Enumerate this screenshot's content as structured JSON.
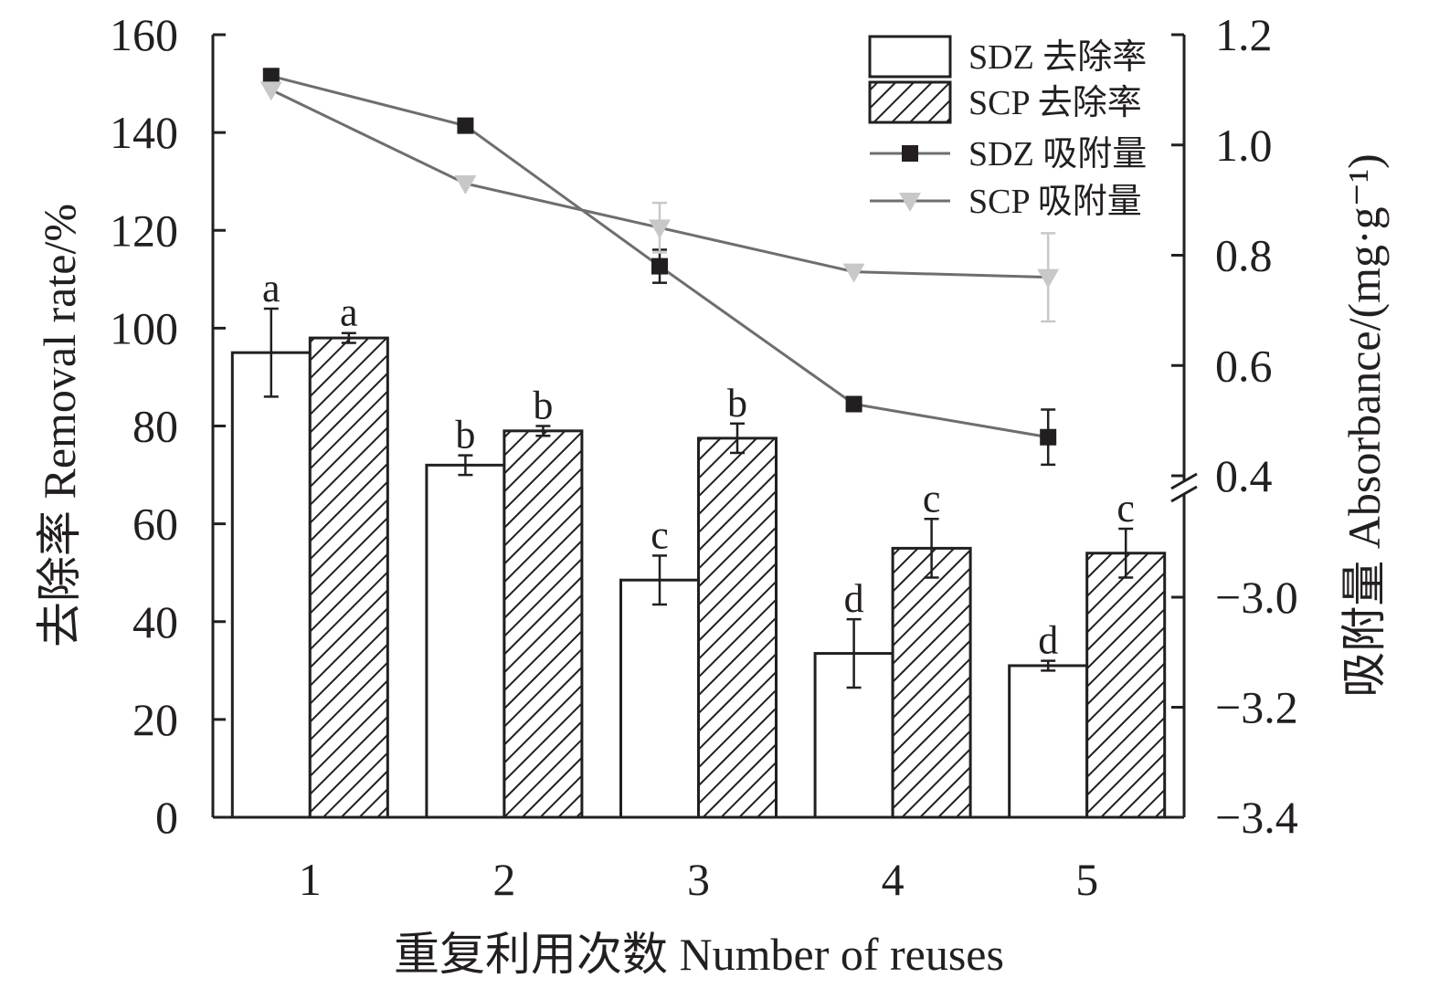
{
  "chart_data": {
    "type": "bar",
    "categories": [
      "1",
      "2",
      "3",
      "4",
      "5"
    ],
    "xlabel": "重复利用次数 Number of reuses",
    "ylabel": "去除率 Removal rate/%",
    "y2label": "吸附量 Absorbance/(mg·g⁻¹)",
    "ylim": [
      0,
      160
    ],
    "yticks": [
      "0",
      "20",
      "40",
      "60",
      "80",
      "100",
      "120",
      "140",
      "160"
    ],
    "y2lim": [
      -3.4,
      1.2
    ],
    "y2_axis_break": [
      0.4,
      -3.0
    ],
    "y2ticks": [
      "−3.4",
      "−3.2",
      "−3.0",
      "0.4",
      "0.6",
      "0.8",
      "1.0",
      "1.2"
    ],
    "legend_position": "top-right",
    "bar_series": [
      {
        "name": "SDZ 去除率",
        "values": [
          95,
          72,
          48.5,
          33.5,
          31
        ],
        "errors": [
          9,
          2,
          5,
          7,
          1
        ],
        "letters": [
          "a",
          "b",
          "c",
          "d",
          "d"
        ],
        "fill": "#ffffff"
      },
      {
        "name": "SCP 去除率",
        "values": [
          98,
          79,
          77.5,
          55,
          54
        ],
        "errors": [
          1,
          1,
          3,
          6,
          5
        ],
        "letters": [
          "a",
          "b",
          "b",
          "c",
          "c"
        ],
        "fill": "hatched"
      }
    ],
    "line_series": [
      {
        "name": "SDZ 吸附量",
        "marker": "square",
        "color": "#231f20",
        "values": [
          1.125,
          1.035,
          0.78,
          0.53,
          0.47
        ],
        "errors": [
          0.012,
          0,
          0.03,
          0,
          0.05
        ]
      },
      {
        "name": "SCP 吸附量",
        "marker": "triangle-down",
        "color": "#c8c8c8",
        "values": [
          1.1,
          0.93,
          0.85,
          0.77,
          0.76
        ],
        "errors": [
          0,
          0,
          0.045,
          0,
          0.08
        ]
      }
    ],
    "line_color": "#6d6e71",
    "axis_color": "#231f20"
  }
}
